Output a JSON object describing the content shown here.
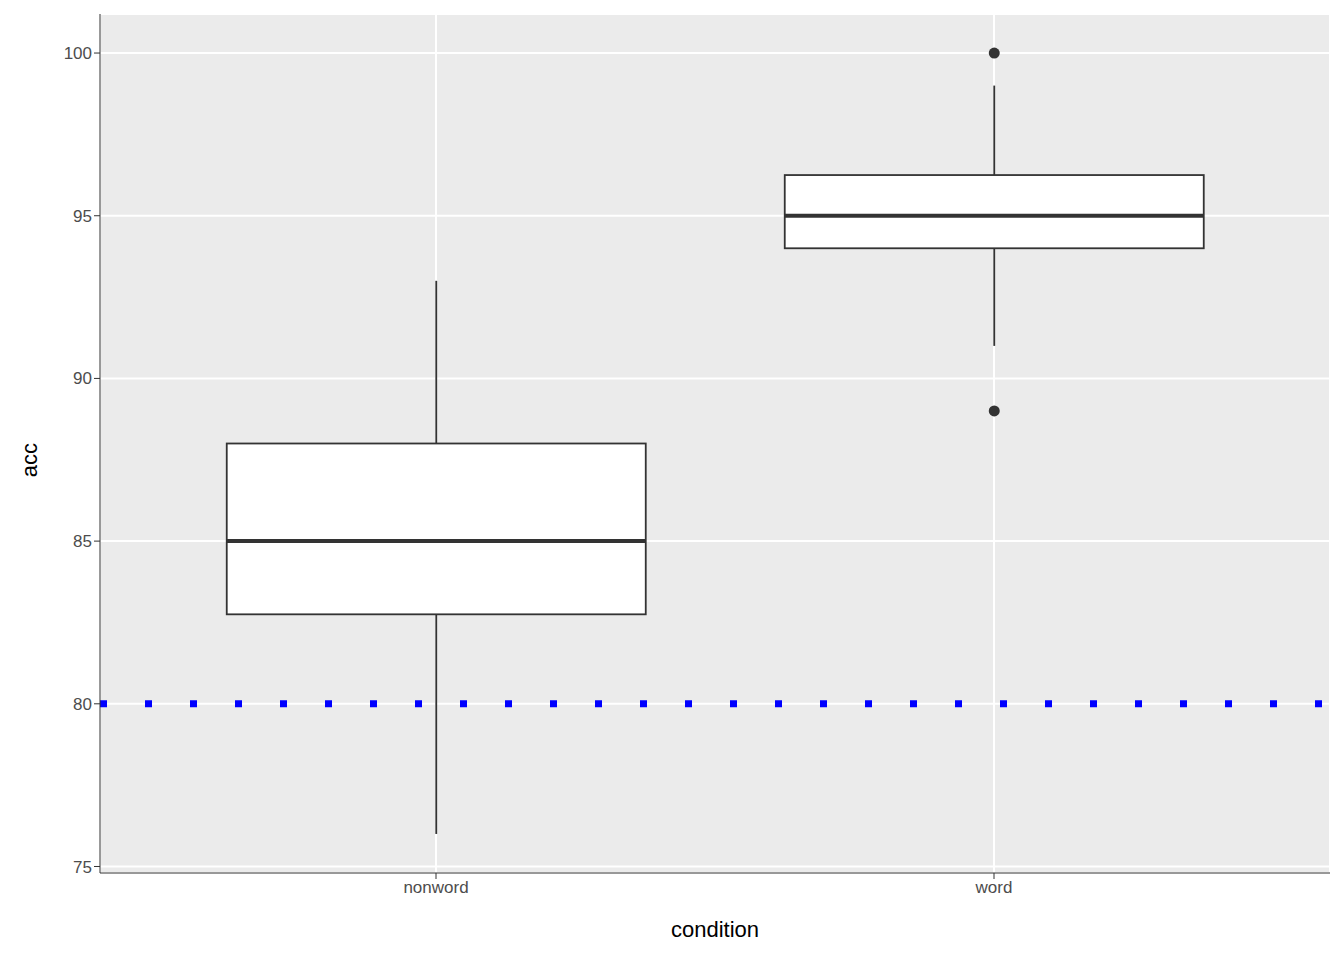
{
  "chart_data": {
    "type": "box",
    "x_label": "condition",
    "y_label": "acc",
    "categories": [
      "nonword",
      "word"
    ],
    "whisker_low": [
      76,
      91
    ],
    "q1": [
      82.75,
      94
    ],
    "median": [
      85,
      95
    ],
    "q3": [
      88,
      96.25
    ],
    "whisker_high": [
      93,
      99
    ],
    "outliers": [
      [],
      [
        89,
        100
      ]
    ],
    "color": "#ffffff",
    "ylim": [
      74.8,
      101.2
    ],
    "yticks": [
      75,
      80,
      85,
      90,
      95,
      100
    ],
    "grid": true,
    "reference_lines": [
      {
        "value": 80,
        "color": "#0000ff",
        "line_style": "dotted"
      }
    ]
  }
}
